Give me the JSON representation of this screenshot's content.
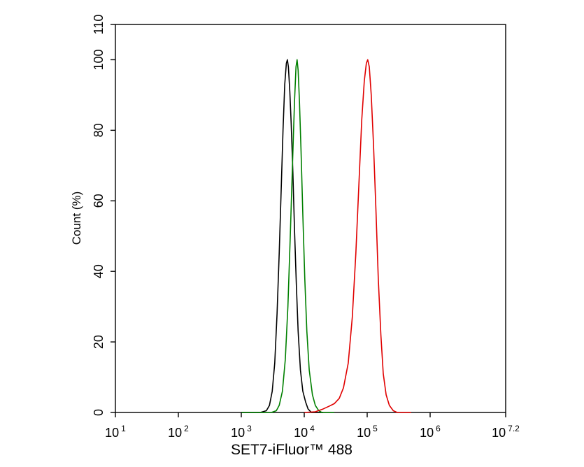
{
  "chart_data": {
    "type": "line",
    "title": "",
    "xlabel": "SET7-iFluor™ 488",
    "ylabel": "Count  (%)",
    "x_scale": "log",
    "xlim": [
      10,
      15848932
    ],
    "ylim": [
      0,
      110
    ],
    "x_ticks": [
      {
        "base": "10",
        "exp": "1",
        "value": 10
      },
      {
        "base": "10",
        "exp": "2",
        "value": 100
      },
      {
        "base": "10",
        "exp": "3",
        "value": 1000
      },
      {
        "base": "10",
        "exp": "4",
        "value": 10000
      },
      {
        "base": "10",
        "exp": "5",
        "value": 100000
      },
      {
        "base": "10",
        "exp": "6",
        "value": 1000000
      },
      {
        "base": "10",
        "exp": "7.2",
        "value": 15848932
      }
    ],
    "y_ticks": [
      "0",
      "20",
      "40",
      "60",
      "80",
      "100",
      "110"
    ],
    "grid": false,
    "legend": "none",
    "series": [
      {
        "color": "#000000",
        "points": [
          [
            1000,
            0
          ],
          [
            2000,
            0
          ],
          [
            2500,
            0.5
          ],
          [
            2800,
            2
          ],
          [
            3100,
            6
          ],
          [
            3400,
            14
          ],
          [
            3700,
            28
          ],
          [
            4000,
            45
          ],
          [
            4300,
            63
          ],
          [
            4600,
            80
          ],
          [
            4900,
            93
          ],
          [
            5200,
            99
          ],
          [
            5400,
            100
          ],
          [
            5600,
            98
          ],
          [
            5900,
            91
          ],
          [
            6200,
            82
          ],
          [
            6600,
            68
          ],
          [
            7000,
            52
          ],
          [
            7500,
            36
          ],
          [
            8000,
            23
          ],
          [
            8700,
            12
          ],
          [
            9500,
            6
          ],
          [
            10500,
            3
          ],
          [
            11500,
            1
          ],
          [
            13000,
            0
          ],
          [
            20000,
            0
          ]
        ]
      },
      {
        "color": "#008000",
        "points": [
          [
            1000,
            0
          ],
          [
            3000,
            0
          ],
          [
            3600,
            0.5
          ],
          [
            4000,
            2
          ],
          [
            4500,
            6
          ],
          [
            5000,
            15
          ],
          [
            5500,
            30
          ],
          [
            6000,
            50
          ],
          [
            6500,
            70
          ],
          [
            7000,
            88
          ],
          [
            7400,
            98
          ],
          [
            7700,
            100
          ],
          [
            8000,
            97
          ],
          [
            8400,
            88
          ],
          [
            8900,
            74
          ],
          [
            9500,
            56
          ],
          [
            10200,
            38
          ],
          [
            11000,
            23
          ],
          [
            12000,
            12
          ],
          [
            13500,
            5
          ],
          [
            15000,
            2
          ],
          [
            17000,
            0.5
          ],
          [
            19000,
            0
          ],
          [
            30000,
            0
          ]
        ]
      },
      {
        "color": "#e00000",
        "points": [
          [
            10000,
            0
          ],
          [
            15000,
            0.2
          ],
          [
            20000,
            1
          ],
          [
            25000,
            1.8
          ],
          [
            30000,
            2.5
          ],
          [
            36000,
            4
          ],
          [
            42000,
            7
          ],
          [
            50000,
            14
          ],
          [
            58000,
            27
          ],
          [
            66000,
            45
          ],
          [
            74000,
            65
          ],
          [
            82000,
            83
          ],
          [
            90000,
            94
          ],
          [
            97000,
            99
          ],
          [
            102000,
            100
          ],
          [
            108000,
            98
          ],
          [
            116000,
            90
          ],
          [
            126000,
            76
          ],
          [
            138000,
            57
          ],
          [
            150000,
            38
          ],
          [
            165000,
            22
          ],
          [
            180000,
            11
          ],
          [
            200000,
            5
          ],
          [
            225000,
            2
          ],
          [
            260000,
            0.5
          ],
          [
            300000,
            0
          ],
          [
            500000,
            0
          ]
        ]
      }
    ]
  }
}
